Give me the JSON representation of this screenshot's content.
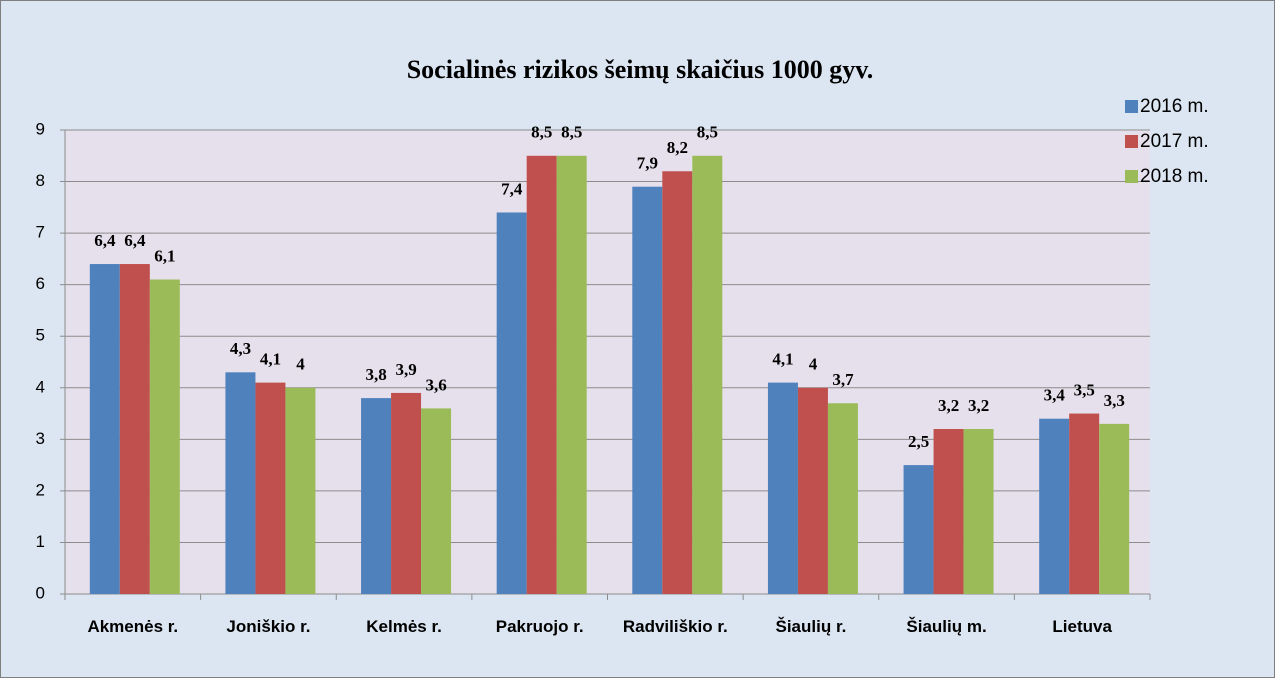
{
  "chart_data": {
    "type": "bar",
    "title": "Socialinės rizikos šeimų skaičius 1000 gyv.",
    "categories": [
      "Akmenės r.",
      "Joniškio r.",
      "Kelmės r.",
      "Pakruojo r.",
      "Radviliškio r.",
      "Šiaulių r.",
      "Šiaulių m.",
      "Lietuva"
    ],
    "series": [
      {
        "name": "2016 m.",
        "color": "#4f81bd",
        "values": [
          6.4,
          4.3,
          3.8,
          7.4,
          7.9,
          4.1,
          2.5,
          3.4
        ],
        "value_labels": [
          "6,4",
          "4,3",
          "3,8",
          "7,4",
          "7,9",
          "4,1",
          "2,5",
          "3,4"
        ]
      },
      {
        "name": "2017 m.",
        "color": "#c0504d",
        "values": [
          6.4,
          4.1,
          3.9,
          8.5,
          8.2,
          4,
          3.2,
          3.5
        ],
        "value_labels": [
          "6,4",
          "4,1",
          "3,9",
          "8,5",
          "8,2",
          "4",
          "3,2",
          "3,5"
        ]
      },
      {
        "name": "2018 m.",
        "color": "#9bbb59",
        "values": [
          6.1,
          4,
          3.6,
          8.5,
          8.5,
          3.7,
          3.2,
          3.3
        ],
        "value_labels": [
          "6,1",
          "4",
          "3,6",
          "8,5",
          "8,5",
          "3,7",
          "3,2",
          "3,3"
        ]
      }
    ],
    "ylim": [
      0,
      9
    ],
    "yticks": [
      0,
      1,
      2,
      3,
      4,
      5,
      6,
      7,
      8,
      9
    ],
    "grid": true,
    "legend": "right"
  }
}
